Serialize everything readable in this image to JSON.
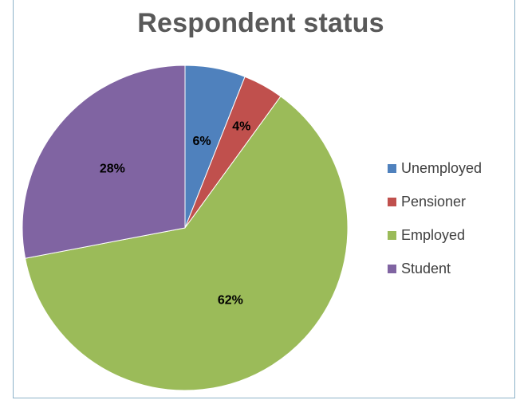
{
  "chart_data": {
    "type": "pie",
    "title": "Respondent status",
    "categories": [
      "Unemployed",
      "Pensioner",
      "Employed",
      "Student"
    ],
    "values": [
      6,
      4,
      62,
      28
    ],
    "labels": [
      "6%",
      "4%",
      "62%",
      "28%"
    ],
    "colors": [
      "#4f81bd",
      "#c0504d",
      "#9bbb59",
      "#8064a2"
    ],
    "legend": "right"
  }
}
